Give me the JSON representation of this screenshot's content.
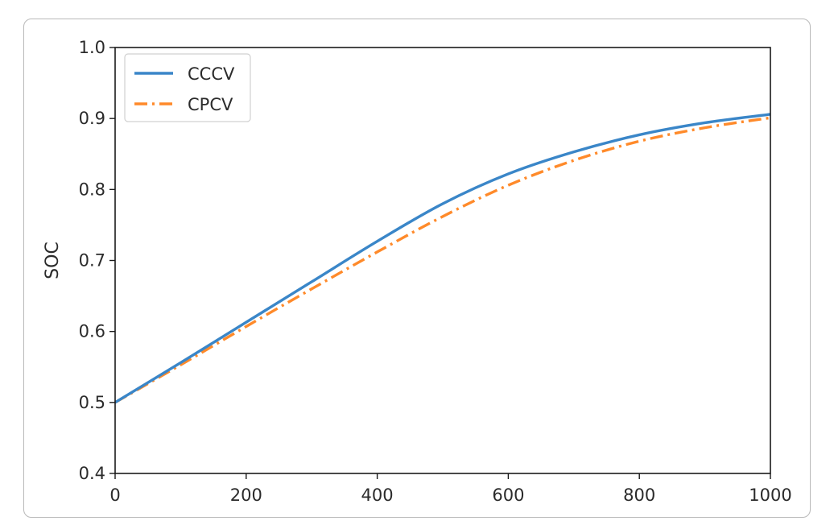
{
  "chart_data": {
    "type": "line",
    "title": "",
    "xlabel": "",
    "ylabel": "SOC",
    "xlim": [
      0,
      1000
    ],
    "ylim": [
      0.4,
      1.0
    ],
    "xticks": [
      0,
      200,
      400,
      600,
      800,
      1000
    ],
    "xtick_labels": [
      "0",
      "200",
      "400",
      "600",
      "800",
      "1000"
    ],
    "yticks": [
      0.4,
      0.5,
      0.6,
      0.7,
      0.8,
      0.9,
      1.0
    ],
    "ytick_labels": [
      "0.4",
      "0.5",
      "0.6",
      "0.7",
      "0.8",
      "0.9",
      "1.0"
    ],
    "grid": false,
    "legend_position": "top-left",
    "x": [
      0,
      100,
      200,
      300,
      400,
      500,
      600,
      700,
      800,
      900,
      1000
    ],
    "series": [
      {
        "name": "CCCV",
        "color": "#3a86c8",
        "line_style": "solid",
        "values": [
          0.5,
          0.556,
          0.613,
          0.67,
          0.727,
          0.78,
          0.822,
          0.853,
          0.877,
          0.894,
          0.906
        ]
      },
      {
        "name": "CPCV",
        "color": "#ff8a2a",
        "line_style": "dash-dot",
        "values": [
          0.5,
          0.553,
          0.607,
          0.66,
          0.712,
          0.762,
          0.806,
          0.841,
          0.868,
          0.887,
          0.901
        ]
      }
    ]
  }
}
